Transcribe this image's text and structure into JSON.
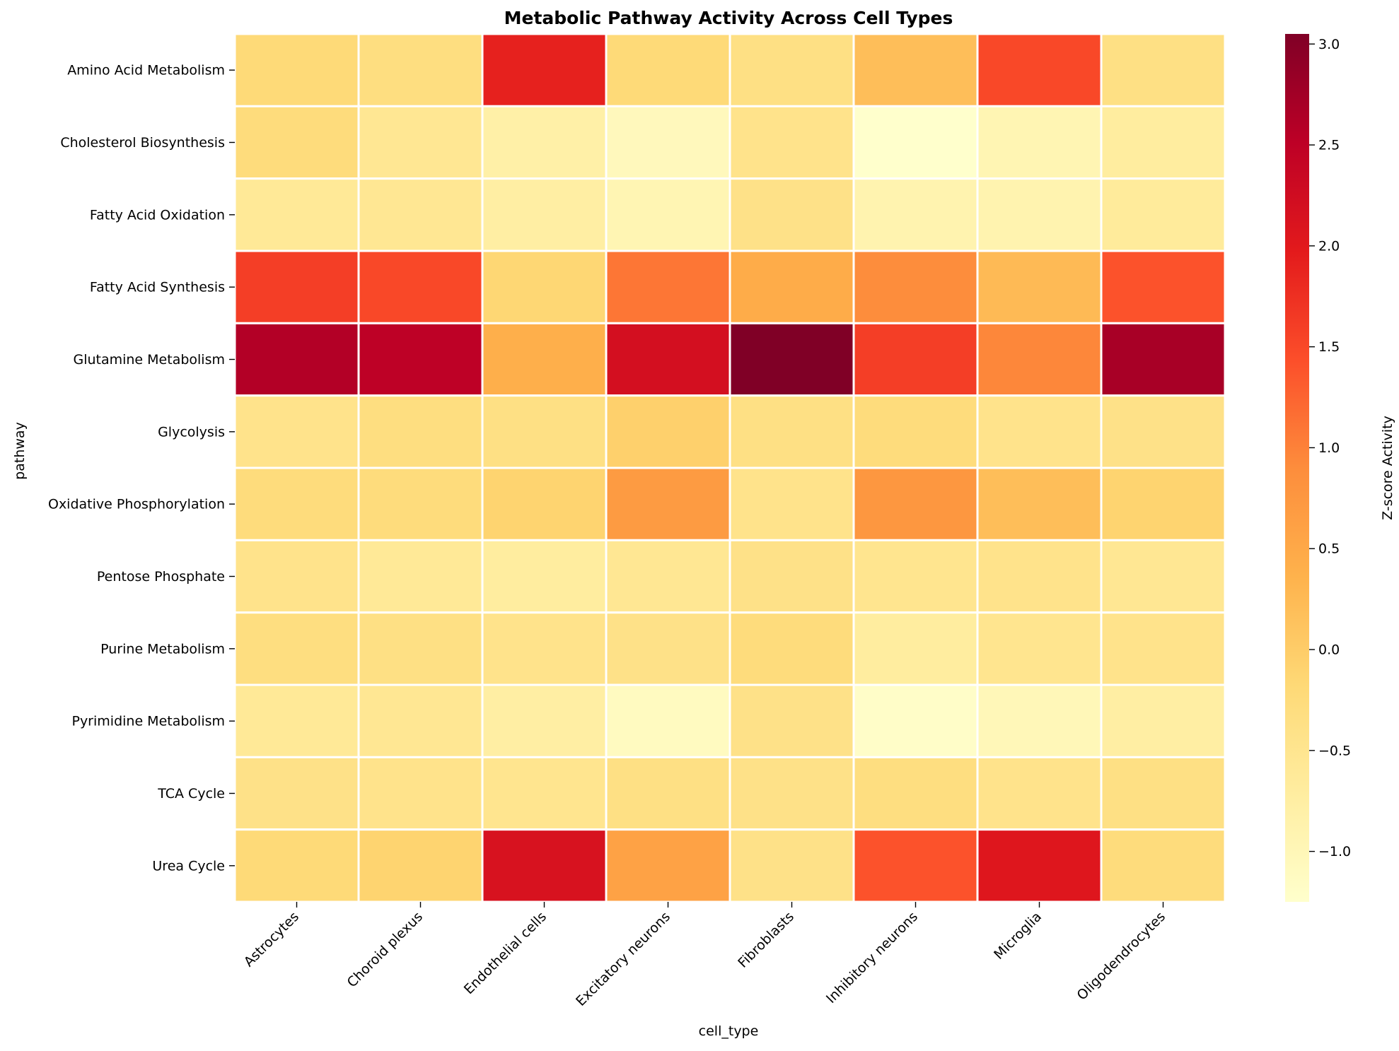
{
  "chart_data": {
    "type": "heatmap",
    "title": "Metabolic Pathway Activity Across Cell Types",
    "xlabel": "cell_type",
    "ylabel": "pathway",
    "colorbar_label": "Z-score Activity",
    "colormap": "YlOrRd",
    "value_range": [
      -1.25,
      3.05
    ],
    "colorbar_ticks": [
      "−1.0",
      "−0.5",
      "0.0",
      "0.5",
      "1.0",
      "1.5",
      "2.0",
      "2.5",
      "3.0"
    ],
    "colorbar_tick_values": [
      -1.0,
      -0.5,
      0.0,
      0.5,
      1.0,
      1.5,
      2.0,
      2.5,
      3.0
    ],
    "columns": [
      "Astrocytes",
      "Choroid plexus",
      "Endothelial cells",
      "Excitatory neurons",
      "Fibroblasts",
      "Inhibitory neurons",
      "Microglia",
      "Oligodendrocytes"
    ],
    "rows": [
      "Amino Acid Metabolism",
      "Cholesterol Biosynthesis",
      "Fatty Acid Oxidation",
      "Fatty Acid Synthesis",
      "Glutamine Metabolism",
      "Glycolysis",
      "Oxidative Phosphorylation",
      "Pentose Phosphate",
      "Purine Metabolism",
      "Pyrimidine Metabolism",
      "TCA Cycle",
      "Urea Cycle"
    ],
    "values": [
      [
        -0.2,
        -0.3,
        1.9,
        -0.2,
        -0.35,
        0.2,
        1.5,
        -0.35
      ],
      [
        -0.25,
        -0.55,
        -0.8,
        -1.05,
        -0.45,
        -1.25,
        -0.95,
        -0.7
      ],
      [
        -0.6,
        -0.55,
        -0.75,
        -0.95,
        -0.4,
        -0.9,
        -0.9,
        -0.65
      ],
      [
        1.6,
        1.5,
        -0.15,
        1.1,
        0.45,
        0.9,
        0.25,
        1.4
      ],
      [
        2.6,
        2.5,
        0.4,
        2.2,
        3.05,
        1.6,
        0.95,
        2.7
      ],
      [
        -0.45,
        -0.3,
        -0.35,
        -0.05,
        -0.35,
        -0.25,
        -0.45,
        -0.4
      ],
      [
        -0.25,
        -0.25,
        -0.1,
        0.7,
        -0.45,
        0.75,
        0.2,
        -0.1
      ],
      [
        -0.45,
        -0.6,
        -0.7,
        -0.55,
        -0.4,
        -0.5,
        -0.45,
        -0.55
      ],
      [
        -0.3,
        -0.35,
        -0.45,
        -0.4,
        -0.25,
        -0.7,
        -0.5,
        -0.45
      ],
      [
        -0.6,
        -0.55,
        -0.75,
        -1.1,
        -0.4,
        -1.2,
        -1.0,
        -0.75
      ],
      [
        -0.4,
        -0.45,
        -0.5,
        -0.35,
        -0.4,
        -0.3,
        -0.45,
        -0.35
      ],
      [
        -0.2,
        -0.1,
        2.15,
        0.6,
        -0.4,
        1.4,
        2.05,
        -0.25
      ]
    ]
  }
}
